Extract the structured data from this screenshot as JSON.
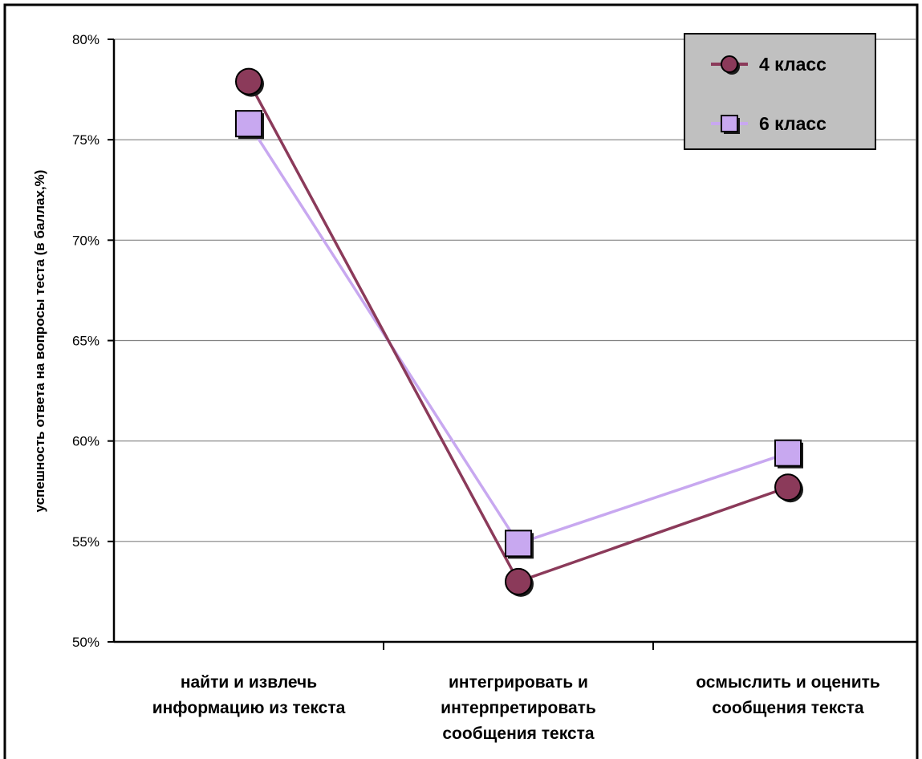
{
  "chart_data": {
    "type": "line",
    "ylabel": "успешность ответа на вопросы теста (в баллах,%)",
    "categories": [
      [
        "найти и извлечь",
        "информацию из текста"
      ],
      [
        "интегрировать и",
        "интерпретировать",
        "сообщения текста"
      ],
      [
        "осмыслить и оценить",
        "сообщения текста"
      ]
    ],
    "y_ticks": [
      "50%",
      "55%",
      "60%",
      "65%",
      "70%",
      "75%",
      "80%"
    ],
    "ylim": [
      50,
      80
    ],
    "y_step": 5,
    "grid": true,
    "legend_position": "top-right",
    "series": [
      {
        "name": "4 класс",
        "values": [
          77.9,
          53.0,
          57.7
        ],
        "marker": "circle",
        "color": "#8b3a5a"
      },
      {
        "name": "6 класс",
        "values": [
          75.8,
          54.9,
          59.4
        ],
        "marker": "square",
        "color": "#c8a8f0"
      }
    ]
  }
}
